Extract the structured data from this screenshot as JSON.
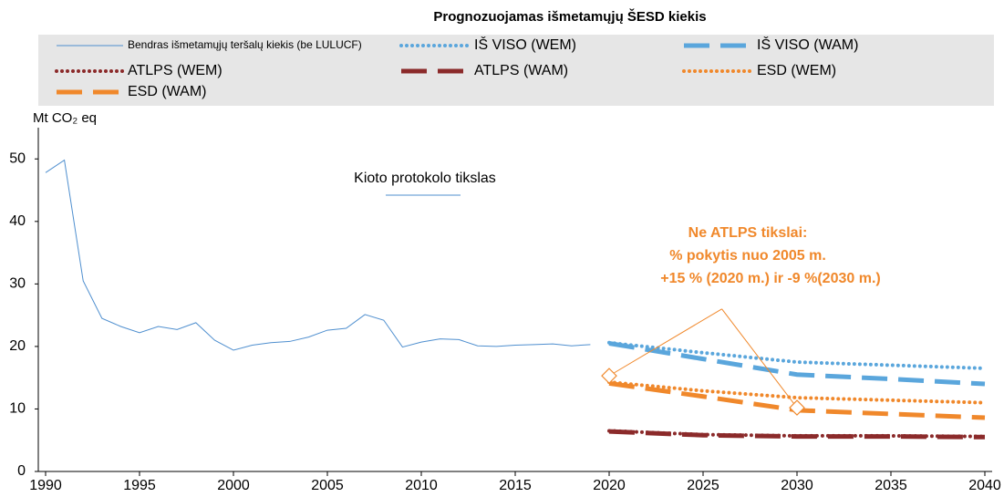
{
  "chart_data": {
    "type": "line",
    "title": "Prognozuojamas išmetamųjų ŠESD kiekis",
    "y_label": "Mt CO₂ eq",
    "xlim": [
      1990,
      2040
    ],
    "xticks": [
      1990,
      1995,
      2000,
      2005,
      2010,
      2015,
      2020,
      2025,
      2030,
      2035,
      2040
    ],
    "ylim": [
      0,
      55
    ],
    "yticks": [
      0,
      10,
      20,
      30,
      40,
      50
    ],
    "grid": false,
    "series": [
      {
        "name": "Bendras išmetamųjų teršalų kiekis (be LULUCF)",
        "color": "#4f8fcf",
        "style": "solid",
        "x": [
          1990,
          1991,
          1992,
          1993,
          1994,
          1995,
          1996,
          1997,
          1998,
          1999,
          2000,
          2001,
          2002,
          2003,
          2004,
          2005,
          2006,
          2007,
          2008,
          2009,
          2010,
          2011,
          2012,
          2013,
          2014,
          2015,
          2016,
          2017,
          2018,
          2019
        ],
        "values": [
          47.8,
          49.8,
          30.5,
          24.5,
          23.2,
          22.2,
          23.2,
          22.7,
          23.8,
          21.0,
          19.4,
          20.2,
          20.6,
          20.8,
          21.5,
          22.6,
          22.9,
          25.1,
          24.2,
          19.9,
          20.7,
          21.2,
          21.1,
          20.1,
          20.0,
          20.2,
          20.3,
          20.4,
          20.1,
          20.3
        ]
      },
      {
        "name": "IŠ VISO (WEM)",
        "color": "#5aa6dc",
        "style": "dot",
        "x": [
          2020,
          2025,
          2030,
          2035,
          2040
        ],
        "values": [
          20.6,
          19.0,
          17.5,
          17.0,
          16.5
        ]
      },
      {
        "name": "IŠ VISO (WAM)",
        "color": "#5aa6dc",
        "style": "dash",
        "x": [
          2020,
          2025,
          2030,
          2035,
          2040
        ],
        "values": [
          20.5,
          18.0,
          15.5,
          14.8,
          14.0
        ]
      },
      {
        "name": "ATLPS (WEM)",
        "color": "#8b2a2a",
        "style": "dot",
        "x": [
          2020,
          2025,
          2030,
          2035,
          2040
        ],
        "values": [
          6.5,
          5.9,
          5.7,
          5.7,
          5.6
        ]
      },
      {
        "name": "ATLPS (WAM)",
        "color": "#8b2a2a",
        "style": "dash",
        "x": [
          2020,
          2025,
          2030,
          2035,
          2040
        ],
        "values": [
          6.4,
          5.8,
          5.6,
          5.6,
          5.5
        ]
      },
      {
        "name": "ESD (WEM)",
        "color": "#f0882b",
        "style": "dot",
        "x": [
          2020,
          2025,
          2030,
          2035,
          2040
        ],
        "values": [
          14.3,
          12.9,
          11.8,
          11.4,
          11.0
        ]
      },
      {
        "name": "ESD (WAM)",
        "color": "#f0882b",
        "style": "dash",
        "x": [
          2020,
          2025,
          2030,
          2035,
          2040
        ],
        "values": [
          14.1,
          12.0,
          9.8,
          9.2,
          8.6
        ]
      }
    ],
    "targets": {
      "color": "#f0882b",
      "x": [
        2020,
        2030
      ],
      "values": [
        15.3,
        10.2
      ]
    },
    "annotations": {
      "kyoto": "Kioto protokolo tikslas",
      "non_ets": [
        "Ne ATLPS tikslai:",
        "% pokytis nuo 2005 m.",
        "+15 % (2020 m.) ir -9 %(2030 m.)"
      ]
    }
  }
}
